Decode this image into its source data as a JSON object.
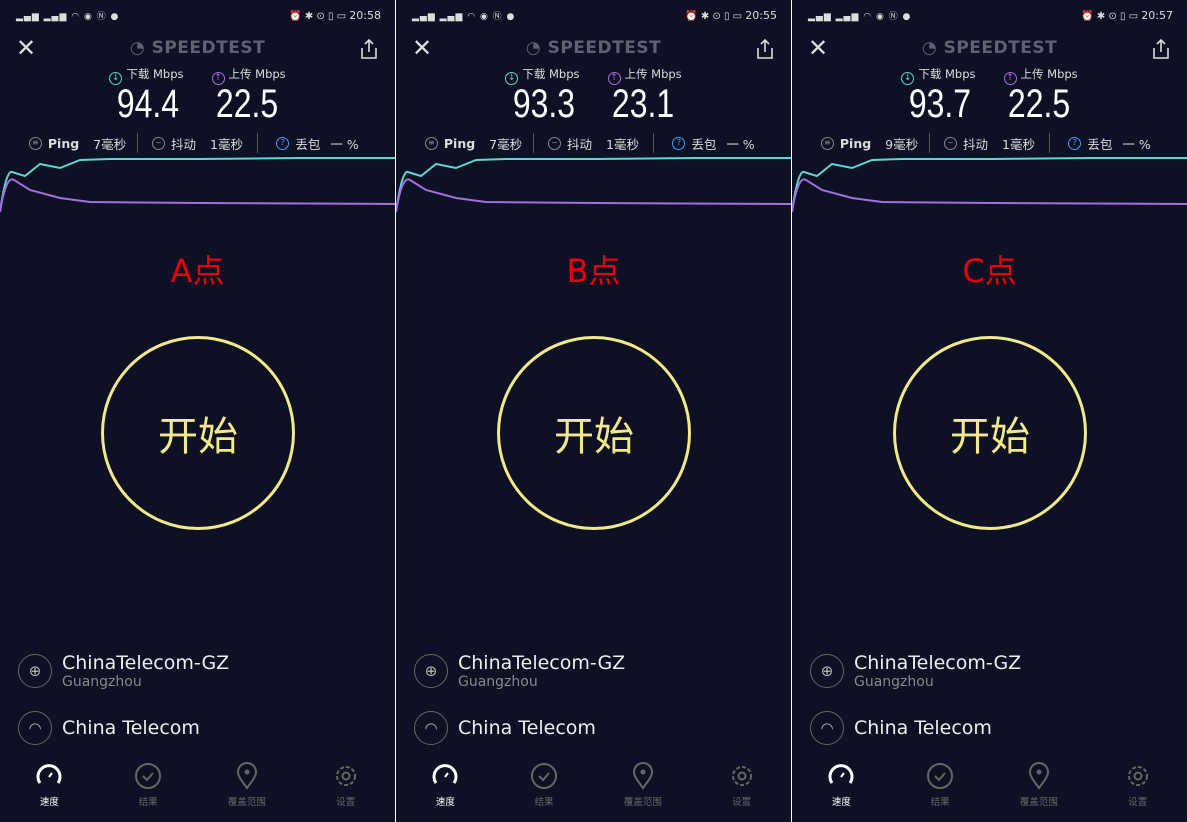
{
  "panels": [
    {
      "status_time": "20:58",
      "title": "SPEEDTEST",
      "download_label": "下载 Mbps",
      "upload_label": "上传 Mbps",
      "download": "94.4",
      "upload": "22.5",
      "ping_label": "Ping",
      "ping": "7毫秒",
      "jitter_label": "抖动",
      "jitter": "1毫秒",
      "loss_label": "丢包",
      "loss": "一 %",
      "point_label": "A点",
      "start_label": "开始",
      "server": "ChinaTelecom-GZ",
      "server_city": "Guangzhou",
      "provider": "China Telecom",
      "nav": [
        "速度",
        "结果",
        "覆盖范围",
        "设置"
      ]
    },
    {
      "status_time": "20:55",
      "title": "SPEEDTEST",
      "download_label": "下载 Mbps",
      "upload_label": "上传 Mbps",
      "download": "93.3",
      "upload": "23.1",
      "ping_label": "Ping",
      "ping": "7毫秒",
      "jitter_label": "抖动",
      "jitter": "1毫秒",
      "loss_label": "丢包",
      "loss": "一 %",
      "point_label": "B点",
      "start_label": "开始",
      "server": "ChinaTelecom-GZ",
      "server_city": "Guangzhou",
      "provider": "China Telecom",
      "nav": [
        "速度",
        "结果",
        "覆盖范围",
        "设置"
      ]
    },
    {
      "status_time": "20:57",
      "title": "SPEEDTEST",
      "download_label": "下载 Mbps",
      "upload_label": "上传 Mbps",
      "download": "93.7",
      "upload": "22.5",
      "ping_label": "Ping",
      "ping": "9毫秒",
      "jitter_label": "抖动",
      "jitter": "1毫秒",
      "loss_label": "丢包",
      "loss": "一 %",
      "point_label": "C点",
      "start_label": "开始",
      "server": "ChinaTelecom-GZ",
      "server_city": "Guangzhou",
      "provider": "China Telecom",
      "nav": [
        "速度",
        "结果",
        "覆盖范围",
        "设置"
      ]
    }
  ],
  "colors": {
    "download": "#5ed6d0",
    "upload": "#a46ee0",
    "start": "#f1e98a",
    "point": "#e8000a",
    "background": "#0e1024"
  },
  "icons": {
    "close": "close-icon",
    "share": "share-icon",
    "download": "arrow-down-circle-icon",
    "upload": "arrow-up-circle-icon",
    "server": "globe-icon",
    "provider": "wifi-icon",
    "nav": [
      "speedometer-icon",
      "check-circle-icon",
      "location-pin-icon",
      "gear-icon"
    ]
  }
}
